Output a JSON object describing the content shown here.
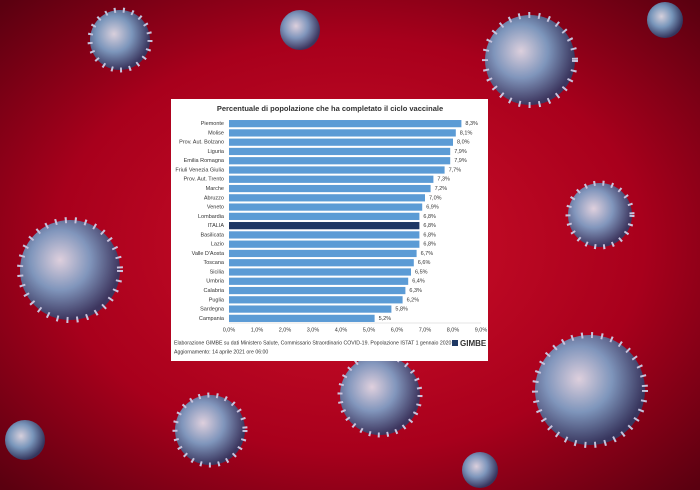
{
  "chart_data": {
    "type": "bar",
    "orientation": "horizontal",
    "title": "Percentuale di popolazione che ha completato il ciclo vaccinale",
    "categories": [
      "Piemonte",
      "Molise",
      "Prov. Aut. Bolzano",
      "Liguria",
      "Emilia Romagna",
      "Friuli Venezia Giulia",
      "Prov. Aut. Trento",
      "Marche",
      "Abruzzo",
      "Veneto",
      "Lombardia",
      "ITALIA",
      "Basilicata",
      "Lazio",
      "Valle D'Aosta",
      "Toscana",
      "Sicilia",
      "Umbria",
      "Calabria",
      "Puglia",
      "Sardegna",
      "Campania"
    ],
    "values": [
      8.3,
      8.1,
      8.0,
      7.9,
      7.9,
      7.7,
      7.3,
      7.2,
      7.0,
      6.9,
      6.8,
      6.8,
      6.8,
      6.8,
      6.7,
      6.6,
      6.5,
      6.4,
      6.3,
      6.2,
      5.8,
      5.2
    ],
    "value_labels": [
      "8,3%",
      "8,1%",
      "8,0%",
      "7,9%",
      "7,9%",
      "7,7%",
      "7,3%",
      "7,2%",
      "7,0%",
      "6,9%",
      "6,8%",
      "6,8%",
      "6,8%",
      "6,8%",
      "6,7%",
      "6,6%",
      "6,5%",
      "6,4%",
      "6,3%",
      "6,2%",
      "5,8%",
      "5,2%"
    ],
    "colors": [
      "#5b9bd5",
      "#5b9bd5",
      "#5b9bd5",
      "#5b9bd5",
      "#5b9bd5",
      "#5b9bd5",
      "#5b9bd5",
      "#5b9bd5",
      "#5b9bd5",
      "#5b9bd5",
      "#5b9bd5",
      "#1f3864",
      "#5b9bd5",
      "#5b9bd5",
      "#5b9bd5",
      "#5b9bd5",
      "#5b9bd5",
      "#5b9bd5",
      "#5b9bd5",
      "#5b9bd5",
      "#5b9bd5",
      "#5b9bd5"
    ],
    "xlim": [
      0,
      9
    ],
    "xticks": [
      {
        "value": 0,
        "label": "0,0%"
      },
      {
        "value": 1,
        "label": "1,0%"
      },
      {
        "value": 2,
        "label": "2,0%"
      },
      {
        "value": 3,
        "label": "3,0%"
      },
      {
        "value": 4,
        "label": "4,0%"
      },
      {
        "value": 5,
        "label": "5,0%"
      },
      {
        "value": 6,
        "label": "6,0%"
      },
      {
        "value": 7,
        "label": "7,0%"
      },
      {
        "value": 8,
        "label": "8,0%"
      },
      {
        "value": 9,
        "label": "9,0%"
      }
    ],
    "grid": false,
    "source": "Elaborazione GIMBE su dati Ministero Salute, Commissario Straordinario COVID-19. Popolazione ISTAT 1 gennaio 2020",
    "updated": "Aggiornamento: 14 aprile 2021 ore 06:00",
    "logo": "GIMBE"
  }
}
